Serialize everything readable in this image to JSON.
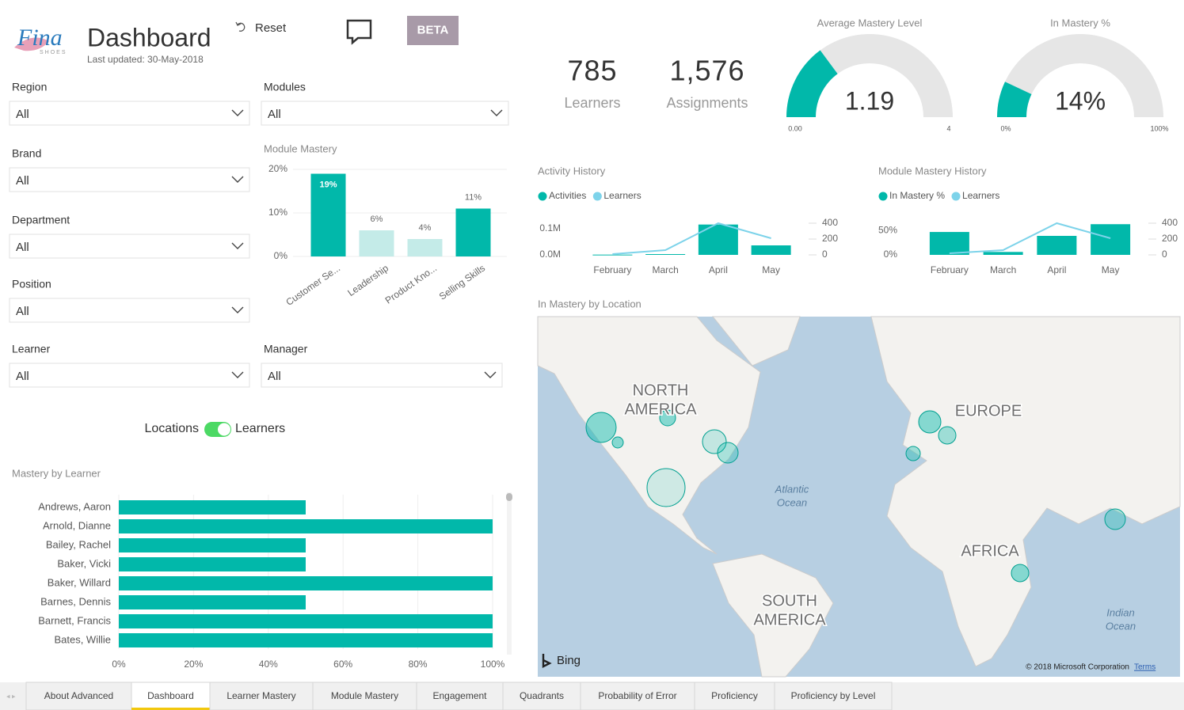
{
  "header": {
    "logo": "Fina",
    "logo_sub": "SHOES",
    "title": "Dashboard",
    "updated": "Last updated: 30-May-2018",
    "reset": "Reset",
    "beta": "BETA"
  },
  "filters": [
    {
      "label": "Region",
      "value": "All"
    },
    {
      "label": "Modules",
      "value": "All"
    },
    {
      "label": "Brand",
      "value": "All"
    },
    {
      "label": "Department",
      "value": "All"
    },
    {
      "label": "Position",
      "value": "All"
    },
    {
      "label": "Learner",
      "value": "All"
    },
    {
      "label": "Manager",
      "value": "All"
    }
  ],
  "toggle": {
    "left": "Locations",
    "right": "Learners"
  },
  "kpis": [
    {
      "value": 785,
      "label": "Learners"
    },
    {
      "value": 1576,
      "value_label": "1,576",
      "label": "Assignments"
    }
  ],
  "gauges": [
    {
      "title": "Average Mastery Level",
      "value": 1.19,
      "min": {
        "value": 0,
        "label": "0.00"
      },
      "max": 4,
      "color": "#01b8aa"
    },
    {
      "title": "In Mastery %",
      "value": 14,
      "value_label": "14%",
      "min": {
        "value": 0,
        "label": "0%"
      },
      "max": {
        "value": 100,
        "label": "100%"
      },
      "color": "#01b8aa"
    }
  ],
  "module_mastery": {
    "type": "bar",
    "title": "Module Mastery",
    "categories": [
      "Customer Se...",
      "Leadership",
      "Product Kno...",
      "Selling Skills"
    ],
    "values": [
      19,
      6,
      4,
      11
    ],
    "value_labels": [
      "19%",
      "6%",
      "4%",
      "11%"
    ],
    "colors": [
      "#01b8aa",
      "#c4ebe8",
      "#c4ebe8",
      "#01b8aa"
    ],
    "ylim": [
      0,
      20
    ],
    "yticks": [
      {
        "value": 0,
        "label": "0%"
      },
      {
        "value": 10,
        "label": "10%"
      },
      {
        "value": 20,
        "label": "20%"
      }
    ],
    "grid": true
  },
  "activity_history": {
    "type": "combo",
    "title": "Activity History",
    "categories": [
      "February",
      "March",
      "April",
      "May"
    ],
    "series": [
      {
        "name": "Activities",
        "type": "bar",
        "color": "#01b8aa",
        "values": [
          1000,
          3000,
          115000,
          36000
        ]
      },
      {
        "name": "Learners",
        "type": "line",
        "axis": "y2",
        "color": "#7dd3ea",
        "values": [
          10,
          60,
          400,
          210
        ]
      }
    ],
    "ylim": [
      0,
      120000
    ],
    "yticks": [
      {
        "value": 0,
        "label": "0.0M"
      },
      {
        "value": 100000,
        "label": "0.1M"
      }
    ],
    "y2lim": [
      0,
      400
    ],
    "y2ticks": [
      0,
      200,
      400
    ]
  },
  "module_mastery_history": {
    "type": "combo",
    "title": "Module Mastery History",
    "categories": [
      "February",
      "March",
      "April",
      "May"
    ],
    "series": [
      {
        "name": "In Mastery %",
        "type": "bar",
        "color": "#01b8aa",
        "values": [
          47,
          6,
          39,
          63
        ]
      },
      {
        "name": "Learners",
        "type": "line",
        "axis": "y2",
        "color": "#7dd3ea",
        "values": [
          20,
          60,
          400,
          210
        ]
      }
    ],
    "ylim": [
      0,
      65
    ],
    "yticks": [
      {
        "value": 0,
        "label": "0%"
      },
      {
        "value": 50,
        "label": "50%"
      }
    ],
    "y2lim": [
      0,
      400
    ],
    "y2ticks": [
      0,
      200,
      400
    ]
  },
  "map": {
    "title": "In Mastery by Location",
    "labels": [
      {
        "lines": [
          "NORTH",
          "AMERICA"
        ]
      },
      {
        "lines": [
          "EUROPE"
        ]
      },
      {
        "lines": [
          "AFRICA"
        ]
      },
      {
        "lines": [
          "SOUTH",
          "AMERICA"
        ]
      },
      {
        "lines": [
          "Atlantic",
          "Ocean"
        ]
      },
      {
        "lines": [
          "Indian",
          "Ocean"
        ]
      }
    ],
    "provider": "Bing",
    "copyright": "© 2018 Microsoft Corporation",
    "terms": "Terms"
  },
  "mastery_by_learner": {
    "type": "bar",
    "orientation": "horizontal",
    "title": "Mastery by Learner",
    "categories": [
      "Andrews, Aaron",
      "Arnold, Dianne",
      "Bailey, Rachel",
      "Baker, Vicki",
      "Baker, Willard",
      "Barnes, Dennis",
      "Barnett, Francis",
      "Bates, Willie"
    ],
    "values": [
      50,
      100,
      50,
      50,
      100,
      50,
      100,
      100
    ],
    "color": "#01b8aa",
    "xlim": [
      0,
      100
    ],
    "xticks": [
      {
        "value": 0,
        "label": "0%"
      },
      {
        "value": 20,
        "label": "20%"
      },
      {
        "value": 40,
        "label": "40%"
      },
      {
        "value": 60,
        "label": "60%"
      },
      {
        "value": 80,
        "label": "80%"
      },
      {
        "value": 100,
        "label": "100%"
      }
    ],
    "grid": true
  },
  "tabs": {
    "items": [
      "About Advanced",
      "Dashboard",
      "Learner Mastery",
      "Module Mastery",
      "Engagement",
      "Quadrants",
      "Probability of Error",
      "Proficiency",
      "Proficiency by Level"
    ],
    "active": 1
  }
}
